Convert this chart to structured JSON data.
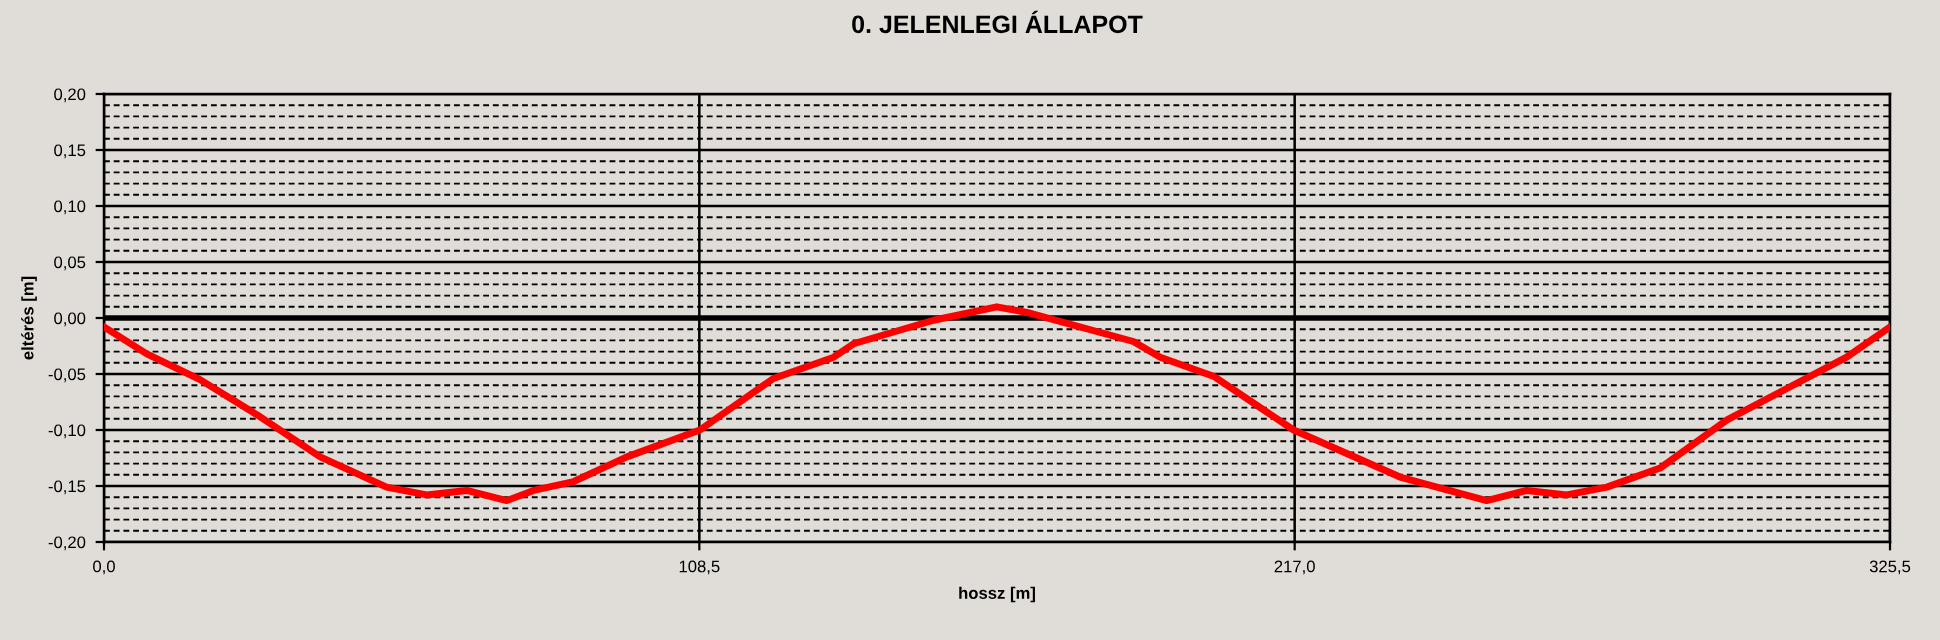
{
  "chart_data": {
    "type": "line",
    "title": "0. JELENLEGI ÁLLAPOT",
    "xlabel": "hossz [m]",
    "ylabel": "eltérés [m]",
    "x": [
      0,
      7.8,
      17.5,
      28.4,
      39.4,
      51.5,
      58.8,
      66.1,
      73.4,
      78.3,
      85.6,
      95.3,
      108.6,
      122,
      133,
      136.6,
      151.2,
      162.7,
      168.2,
      187.6,
      192.5,
      202.2,
      216.8,
      236.2,
      252,
      259.3,
      266.6,
      273.9,
      283.6,
      295.8,
      317.6,
      325.5
    ],
    "series": [
      {
        "color": "#ff0000",
        "values": [
          -0.008,
          -0.032,
          -0.055,
          -0.088,
          -0.124,
          -0.151,
          -0.158,
          -0.154,
          -0.163,
          -0.154,
          -0.146,
          -0.124,
          -0.1,
          -0.054,
          -0.035,
          -0.023,
          -0.002,
          0.01,
          0.005,
          -0.021,
          -0.035,
          -0.052,
          -0.1,
          -0.142,
          -0.163,
          -0.154,
          -0.158,
          -0.151,
          -0.134,
          -0.091,
          -0.035,
          -0.008
        ]
      }
    ],
    "xlim": [
      0,
      325.5
    ],
    "xticks": [
      {
        "value": 0,
        "label": "0,0"
      },
      {
        "value": 108.5,
        "label": "108,5"
      },
      {
        "value": 217,
        "label": "217,0"
      },
      {
        "value": 325.5,
        "label": "325,5"
      }
    ],
    "ylim": [
      -0.2,
      0.2
    ],
    "yticks": [
      {
        "value": -0.2,
        "label": "-0,20"
      },
      {
        "value": -0.19,
        "label": null
      },
      {
        "value": -0.18,
        "label": null
      },
      {
        "value": -0.17,
        "label": null
      },
      {
        "value": -0.16,
        "label": null
      },
      {
        "value": -0.15,
        "label": "-0,15"
      },
      {
        "value": -0.14,
        "label": null
      },
      {
        "value": -0.13,
        "label": null
      },
      {
        "value": -0.12,
        "label": null
      },
      {
        "value": -0.11,
        "label": null
      },
      {
        "value": -0.1,
        "label": "-0,10"
      },
      {
        "value": -0.09,
        "label": null
      },
      {
        "value": -0.08,
        "label": null
      },
      {
        "value": -0.07,
        "label": null
      },
      {
        "value": -0.06,
        "label": null
      },
      {
        "value": -0.05,
        "label": "-0,05"
      },
      {
        "value": -0.04,
        "label": null
      },
      {
        "value": -0.03,
        "label": null
      },
      {
        "value": -0.02,
        "label": null
      },
      {
        "value": -0.01,
        "label": null
      },
      {
        "value": 0,
        "label": "0,00"
      },
      {
        "value": 0.01,
        "label": null
      },
      {
        "value": 0.02,
        "label": null
      },
      {
        "value": 0.03,
        "label": null
      },
      {
        "value": 0.04,
        "label": null
      },
      {
        "value": 0.05,
        "label": "0,05"
      },
      {
        "value": 0.06,
        "label": null
      },
      {
        "value": 0.07,
        "label": null
      },
      {
        "value": 0.08,
        "label": null
      },
      {
        "value": 0.09,
        "label": null
      },
      {
        "value": 0.1,
        "label": "0,10"
      },
      {
        "value": 0.11,
        "label": null
      },
      {
        "value": 0.12,
        "label": null
      },
      {
        "value": 0.13,
        "label": null
      },
      {
        "value": 0.14,
        "label": null
      },
      {
        "value": 0.15,
        "label": "0,15"
      },
      {
        "value": 0.16,
        "label": null
      },
      {
        "value": 0.17,
        "label": null
      },
      {
        "value": 0.18,
        "label": null
      },
      {
        "value": 0.19,
        "label": null
      },
      {
        "value": 0.2,
        "label": "0,20"
      }
    ],
    "ref_lines": [
      {
        "axis": "y",
        "value": 0,
        "color": "#000000"
      }
    ],
    "grid": true,
    "legend": false,
    "marker": "none",
    "line_style": "solid"
  }
}
